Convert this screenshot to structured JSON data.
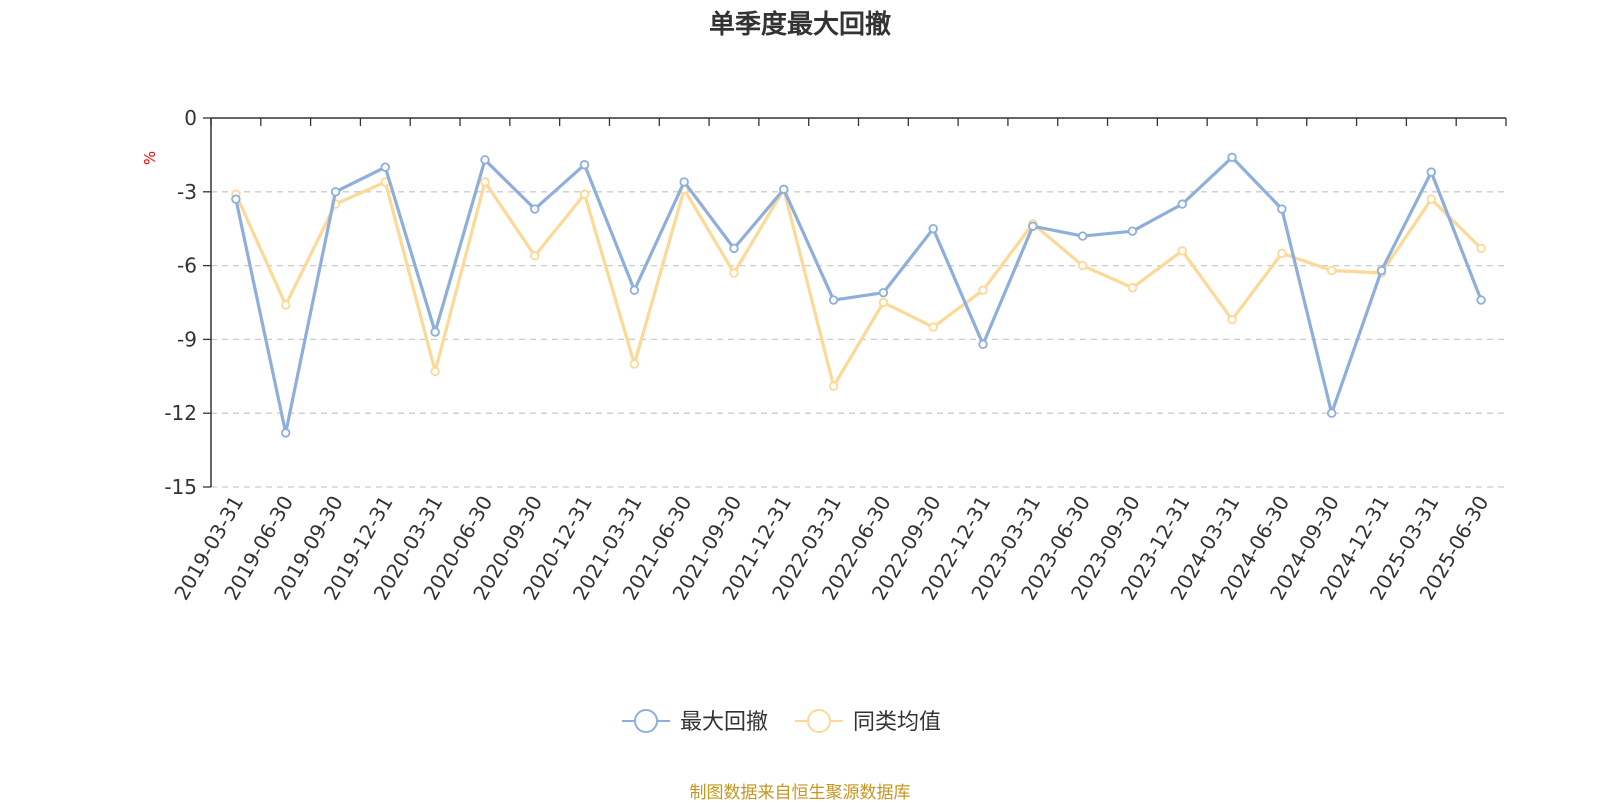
{
  "chart_data": {
    "type": "line",
    "title": "单季度最大回撤",
    "ylabel": "%",
    "ylim": [
      -15,
      0
    ],
    "yticks": [
      0,
      -3,
      -6,
      -9,
      -12,
      -15
    ],
    "grid": true,
    "legend_position": "bottom",
    "categories": [
      "2019-03-31",
      "2019-06-30",
      "2019-09-30",
      "2019-12-31",
      "2020-03-31",
      "2020-06-30",
      "2020-09-30",
      "2020-12-31",
      "2021-03-31",
      "2021-06-30",
      "2021-09-30",
      "2021-12-31",
      "2022-03-31",
      "2022-06-30",
      "2022-09-30",
      "2022-12-31",
      "2023-03-31",
      "2023-06-30",
      "2023-09-30",
      "2023-12-31",
      "2024-03-31",
      "2024-06-30",
      "2024-09-30",
      "2024-12-31",
      "2025-03-31",
      "2025-06-30"
    ],
    "series": [
      {
        "name": "最大回撤",
        "color": "#8eaedc",
        "values": [
          -3.3,
          -12.8,
          -3.0,
          -2.0,
          -8.7,
          -1.7,
          -3.7,
          -1.9,
          -7.0,
          -2.6,
          -5.3,
          -2.9,
          -7.4,
          -7.1,
          -4.5,
          -9.2,
          -4.4,
          -4.8,
          -4.6,
          -3.5,
          -1.6,
          -3.7,
          -12.0,
          -6.2,
          -2.2,
          -7.4
        ]
      },
      {
        "name": "同类均值",
        "color": "#fcd997",
        "values": [
          -3.1,
          -7.6,
          -3.5,
          -2.6,
          -10.3,
          -2.6,
          -5.6,
          -3.1,
          -10.0,
          -2.9,
          -6.3,
          -2.9,
          -10.9,
          -7.5,
          -8.5,
          -7.0,
          -4.3,
          -6.0,
          -6.9,
          -5.4,
          -8.2,
          -5.5,
          -6.2,
          -6.3,
          -3.3,
          -5.3
        ]
      }
    ]
  },
  "footer": {
    "source_text": "制图数据来自恒生聚源数据库"
  }
}
